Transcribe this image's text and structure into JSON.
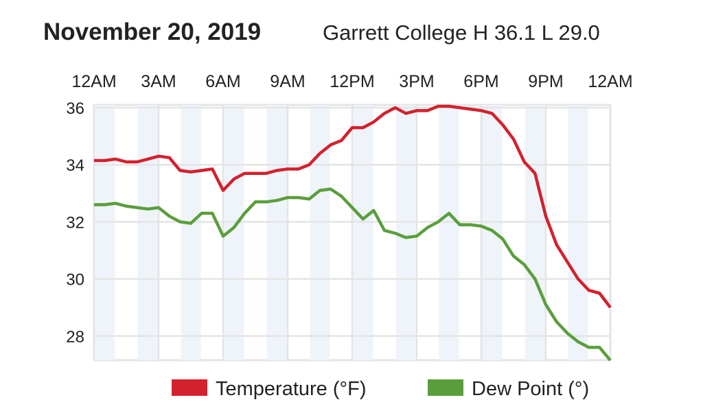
{
  "chart_data": {
    "type": "line",
    "title": "November 20, 2019",
    "subtitle": "Garrett College H 36.1 L 29.0",
    "x_tick_labels": [
      "12AM",
      "3AM",
      "6AM",
      "9AM",
      "12PM",
      "3PM",
      "6PM",
      "9PM",
      "12AM"
    ],
    "y_tick_labels": [
      "36",
      "34",
      "32",
      "30",
      "28"
    ],
    "y_ticks": [
      36,
      34,
      32,
      30,
      28
    ],
    "ylim": [
      27.15,
      36.2
    ],
    "xlim_hours": [
      0,
      24
    ],
    "grid": true,
    "legend_position": "bottom",
    "x_hours": [
      0,
      0.5,
      1,
      1.5,
      2,
      2.5,
      3,
      3.5,
      4,
      4.5,
      5,
      5.5,
      6,
      6.5,
      7,
      7.5,
      8,
      8.5,
      9,
      9.5,
      10,
      10.5,
      11,
      11.5,
      12,
      12.5,
      13,
      13.5,
      14,
      14.5,
      15,
      15.5,
      16,
      16.5,
      17,
      17.5,
      18,
      18.5,
      19,
      19.5,
      20,
      20.5,
      21,
      21.5,
      22,
      22.5,
      23,
      23.5,
      24
    ],
    "series": [
      {
        "name": "Temperature (°F)",
        "color": "#d3212d",
        "values": [
          34.15,
          34.15,
          34.2,
          34.1,
          34.1,
          34.2,
          34.3,
          34.25,
          33.8,
          33.75,
          33.8,
          33.85,
          33.1,
          33.5,
          33.7,
          33.7,
          33.7,
          33.8,
          33.85,
          33.85,
          34.0,
          34.4,
          34.7,
          34.85,
          35.3,
          35.3,
          35.5,
          35.8,
          36.0,
          35.8,
          35.9,
          35.9,
          36.05,
          36.05,
          36.0,
          35.95,
          35.9,
          35.8,
          35.4,
          34.9,
          34.1,
          33.7,
          32.2,
          31.2,
          30.6,
          30.0,
          29.6,
          29.5,
          29.0
        ]
      },
      {
        "name": "Dew Point (°)",
        "color": "#5a9e3c",
        "values": [
          32.6,
          32.6,
          32.65,
          32.55,
          32.5,
          32.45,
          32.5,
          32.2,
          32.0,
          31.95,
          32.3,
          32.3,
          31.5,
          31.8,
          32.3,
          32.7,
          32.7,
          32.75,
          32.85,
          32.85,
          32.8,
          33.1,
          33.15,
          32.9,
          32.5,
          32.1,
          32.4,
          31.7,
          31.6,
          31.45,
          31.5,
          31.8,
          32.0,
          32.3,
          31.9,
          31.9,
          31.85,
          31.7,
          31.4,
          30.8,
          30.5,
          30.0,
          29.1,
          28.5,
          28.1,
          27.8,
          27.6,
          27.6,
          27.15
        ]
      }
    ]
  }
}
